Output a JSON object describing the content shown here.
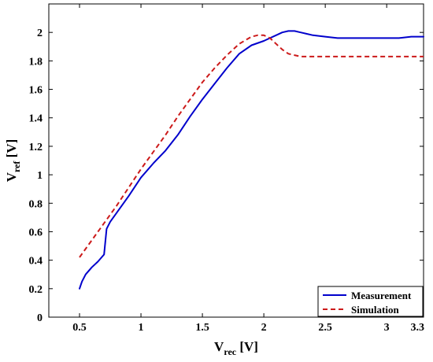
{
  "chart_data": {
    "type": "line",
    "title": "",
    "xlabel": {
      "main": "V",
      "sub": "rec",
      "unit": " [V]"
    },
    "ylabel": {
      "main": "V",
      "sub": "ref",
      "unit": " [V]"
    },
    "xlim": [
      0.25,
      3.3
    ],
    "ylim": [
      0,
      2.2
    ],
    "xticks": [
      0.5,
      1,
      1.5,
      2,
      2.5,
      3,
      3.3
    ],
    "xtick_labels": [
      "0.5",
      "1",
      "1.5",
      "2",
      "2.5",
      "3",
      "3.3"
    ],
    "yticks": [
      0,
      0.2,
      0.4,
      0.6,
      0.8,
      1,
      1.2,
      1.4,
      1.6,
      1.8,
      2
    ],
    "ytick_labels": [
      "0",
      "0.2",
      "0.4",
      "0.6",
      "0.8",
      "1",
      "1.2",
      "1.4",
      "1.6",
      "1.8",
      "2"
    ],
    "grid": false,
    "legend": "bottom-right",
    "series": [
      {
        "name": "Measurement",
        "color": "#0000cc",
        "style": "solid",
        "x": [
          0.5,
          0.52,
          0.55,
          0.6,
          0.65,
          0.7,
          0.72,
          0.75,
          0.8,
          0.9,
          1.0,
          1.1,
          1.2,
          1.3,
          1.4,
          1.5,
          1.6,
          1.7,
          1.8,
          1.9,
          2.0,
          2.05,
          2.1,
          2.15,
          2.2,
          2.25,
          2.3,
          2.35,
          2.4,
          2.5,
          2.6,
          2.7,
          2.8,
          2.9,
          3.0,
          3.1,
          3.2,
          3.3
        ],
        "y": [
          0.2,
          0.25,
          0.3,
          0.35,
          0.39,
          0.44,
          0.62,
          0.67,
          0.73,
          0.85,
          0.98,
          1.08,
          1.17,
          1.28,
          1.41,
          1.53,
          1.64,
          1.75,
          1.85,
          1.91,
          1.94,
          1.96,
          1.98,
          2.0,
          2.01,
          2.01,
          2.0,
          1.99,
          1.98,
          1.97,
          1.96,
          1.96,
          1.96,
          1.96,
          1.96,
          1.96,
          1.97,
          1.97
        ]
      },
      {
        "name": "Simulation",
        "color": "#cc1a1a",
        "style": "dashed",
        "x": [
          0.5,
          0.6,
          0.7,
          0.8,
          0.9,
          1.0,
          1.1,
          1.2,
          1.3,
          1.4,
          1.5,
          1.6,
          1.7,
          1.8,
          1.9,
          1.95,
          2.0,
          2.05,
          2.1,
          2.15,
          2.2,
          2.25,
          2.3,
          2.4,
          2.5,
          2.6,
          2.7,
          2.8,
          2.9,
          3.0,
          3.1,
          3.2,
          3.3
        ],
        "y": [
          0.42,
          0.54,
          0.66,
          0.78,
          0.91,
          1.04,
          1.16,
          1.28,
          1.41,
          1.53,
          1.65,
          1.75,
          1.84,
          1.92,
          1.97,
          1.98,
          1.98,
          1.96,
          1.92,
          1.88,
          1.85,
          1.84,
          1.83,
          1.83,
          1.83,
          1.83,
          1.83,
          1.83,
          1.83,
          1.83,
          1.83,
          1.83,
          1.83
        ]
      }
    ]
  }
}
